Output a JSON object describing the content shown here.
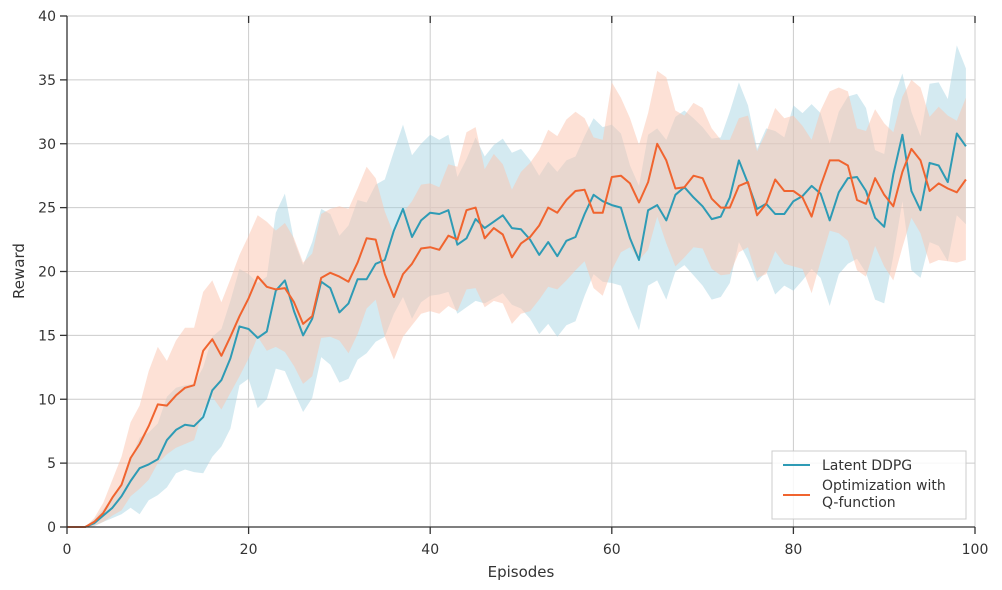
{
  "chart_data": {
    "type": "line",
    "xlabel": "Episodes",
    "ylabel": "Reward",
    "xlim": [
      0,
      100
    ],
    "ylim": [
      0,
      40
    ],
    "xticks": [
      0,
      20,
      40,
      60,
      80,
      100
    ],
    "yticks": [
      0,
      5,
      10,
      15,
      20,
      25,
      30,
      35,
      40
    ],
    "grid": true,
    "legend_position": "lower-right",
    "x": [
      0,
      1,
      2,
      3,
      4,
      5,
      6,
      7,
      8,
      9,
      10,
      11,
      12,
      13,
      14,
      15,
      16,
      17,
      18,
      19,
      20,
      21,
      22,
      23,
      24,
      25,
      26,
      27,
      28,
      29,
      30,
      31,
      32,
      33,
      34,
      35,
      36,
      37,
      38,
      39,
      40,
      41,
      42,
      43,
      44,
      45,
      46,
      47,
      48,
      49,
      50,
      51,
      52,
      53,
      54,
      55,
      56,
      57,
      58,
      59,
      60,
      61,
      62,
      63,
      64,
      65,
      66,
      67,
      68,
      69,
      70,
      71,
      72,
      73,
      74,
      75,
      76,
      77,
      78,
      79,
      80,
      81,
      82,
      83,
      84,
      85,
      86,
      87,
      88,
      89,
      90,
      91,
      92,
      93,
      94,
      95,
      96,
      97,
      98,
      99
    ],
    "series": [
      {
        "name": "Latent DDPG",
        "color": "#2e9bb5",
        "band_color": "#9fd1df",
        "values": [
          0,
          0,
          0,
          0.3,
          0.9,
          1.5,
          2.4,
          3.6,
          4.6,
          4.9,
          5.3,
          6.8,
          7.6,
          8.0,
          7.9,
          8.6,
          10.7,
          11.5,
          13.2,
          15.7,
          15.5,
          14.8,
          15.3,
          18.5,
          19.3,
          16.9,
          15.0,
          16.3,
          19.2,
          18.7,
          16.8,
          17.5,
          19.4,
          19.4,
          20.6,
          20.9,
          23.2,
          24.9,
          22.7,
          24.0,
          24.6,
          24.5,
          24.8,
          22.1,
          22.6,
          24.1,
          23.4,
          23.9,
          24.4,
          23.4,
          23.3,
          22.5,
          21.3,
          22.3,
          21.2,
          22.4,
          22.7,
          24.5,
          26.0,
          25.5,
          25.2,
          25.0,
          22.6,
          20.9,
          24.8,
          25.2,
          24.0,
          26.0,
          26.6,
          25.8,
          25.1,
          24.1,
          24.3,
          25.8,
          28.7,
          26.9,
          24.9,
          25.3,
          24.5,
          24.5,
          25.5,
          25.9,
          26.7,
          26.1,
          24.0,
          26.2,
          27.3,
          27.4,
          26.3,
          24.2,
          23.5,
          27.6,
          30.7,
          26.3,
          24.8,
          28.5,
          28.3,
          27.0,
          30.8,
          29.8
        ],
        "upper": [
          0,
          0,
          0,
          0.6,
          1.4,
          2.3,
          3.5,
          5.3,
          7.0,
          7.4,
          8.1,
          10.2,
          10.9,
          11.1,
          11.2,
          12.5,
          14.9,
          15.5,
          17.7,
          20.2,
          19.8,
          19.1,
          19.6,
          24.6,
          26.1,
          22.4,
          20.5,
          22.3,
          24.9,
          24.5,
          22.8,
          23.6,
          25.6,
          25.4,
          26.8,
          27.2,
          29.4,
          31.5,
          29.1,
          30.0,
          30.7,
          30.3,
          30.7,
          27.4,
          28.8,
          30.5,
          29.0,
          29.9,
          30.4,
          29.3,
          29.6,
          28.7,
          27.5,
          28.6,
          27.8,
          28.7,
          29.0,
          30.6,
          32.0,
          31.3,
          31.5,
          30.8,
          28.3,
          26.7,
          30.7,
          31.2,
          30.3,
          32.1,
          32.6,
          32.0,
          31.3,
          30.4,
          30.5,
          32.5,
          34.8,
          33.0,
          29.6,
          31.2,
          31.0,
          30.5,
          33.0,
          32.4,
          33.1,
          32.4,
          30.0,
          32.5,
          33.7,
          33.9,
          32.8,
          29.5,
          29.2,
          33.5,
          35.5,
          32.5,
          30.6,
          34.7,
          34.8,
          33.5,
          37.7,
          35.9
        ],
        "lower": [
          0,
          0,
          0,
          0.05,
          0.4,
          0.7,
          1.0,
          1.5,
          1.0,
          2.1,
          2.5,
          3.1,
          4.2,
          4.5,
          4.3,
          4.2,
          5.5,
          6.3,
          7.7,
          11.1,
          11.6,
          9.3,
          10.0,
          12.4,
          12.2,
          10.6,
          9.0,
          10.1,
          13.3,
          12.7,
          11.3,
          11.6,
          13.1,
          13.6,
          14.5,
          14.9,
          16.7,
          18.0,
          16.3,
          17.6,
          18.1,
          18.2,
          18.4,
          16.7,
          17.2,
          17.7,
          17.5,
          17.9,
          18.3,
          17.4,
          17.1,
          16.3,
          15.1,
          15.9,
          14.9,
          15.8,
          16.1,
          18.1,
          19.8,
          19.2,
          19.1,
          18.9,
          17.0,
          15.4,
          18.9,
          19.3,
          17.8,
          20.0,
          20.5,
          19.7,
          18.9,
          17.8,
          18.0,
          19.1,
          22.3,
          20.9,
          19.2,
          20.0,
          18.2,
          18.9,
          18.5,
          19.3,
          20.2,
          19.5,
          17.3,
          19.8,
          20.6,
          21.0,
          19.9,
          17.8,
          17.5,
          21.2,
          25.5,
          20.1,
          19.5,
          22.3,
          22.0,
          20.8,
          24.4,
          23.7
        ]
      },
      {
        "name": "Optimization with Q-function",
        "color": "#f0642f",
        "band_color": "#fcc3ae",
        "values": [
          0,
          0,
          0,
          0.4,
          1.1,
          2.3,
          3.3,
          5.4,
          6.5,
          7.9,
          9.6,
          9.5,
          10.3,
          10.9,
          11.1,
          13.8,
          14.7,
          13.4,
          14.9,
          16.5,
          17.9,
          19.6,
          18.8,
          18.6,
          18.7,
          17.6,
          15.9,
          16.5,
          19.5,
          19.9,
          19.6,
          19.2,
          20.7,
          22.6,
          22.5,
          19.8,
          18.0,
          19.8,
          20.6,
          21.8,
          21.9,
          21.7,
          22.8,
          22.5,
          24.8,
          25.0,
          22.6,
          23.4,
          22.9,
          21.1,
          22.2,
          22.7,
          23.6,
          25.0,
          24.6,
          25.6,
          26.3,
          26.4,
          24.6,
          24.6,
          27.4,
          27.5,
          26.9,
          25.4,
          27.0,
          30.0,
          28.7,
          26.5,
          26.6,
          27.5,
          27.3,
          25.7,
          25.0,
          25.0,
          26.7,
          27.0,
          24.4,
          25.3,
          27.2,
          26.3,
          26.3,
          25.8,
          24.3,
          26.7,
          28.7,
          28.7,
          28.3,
          25.6,
          25.3,
          27.3,
          26.0,
          25.1,
          27.8,
          29.6,
          28.7,
          26.3,
          26.9,
          26.5,
          26.2,
          27.2
        ],
        "upper": [
          0,
          0,
          0,
          0.7,
          1.9,
          3.7,
          5.5,
          8.2,
          9.5,
          12.2,
          14.1,
          13.0,
          14.6,
          15.6,
          15.6,
          18.4,
          19.3,
          17.6,
          19.4,
          21.3,
          22.8,
          24.4,
          23.9,
          23.2,
          23.8,
          22.6,
          20.7,
          21.4,
          24.5,
          24.9,
          25.1,
          24.9,
          26.5,
          28.2,
          27.3,
          24.7,
          22.9,
          24.6,
          25.5,
          26.8,
          26.9,
          26.6,
          28.4,
          28.2,
          30.9,
          31.3,
          28.0,
          29.2,
          28.4,
          26.4,
          27.8,
          28.5,
          29.5,
          31.1,
          30.6,
          31.9,
          32.5,
          32.0,
          30.5,
          30.3,
          34.8,
          33.6,
          32.0,
          29.9,
          32.4,
          35.7,
          35.2,
          32.6,
          32.2,
          33.2,
          32.8,
          31.2,
          30.3,
          30.3,
          32.0,
          32.2,
          29.4,
          30.9,
          32.8,
          32.0,
          32.2,
          31.4,
          30.3,
          32.6,
          34.1,
          34.4,
          34.1,
          31.2,
          31.0,
          32.7,
          31.6,
          30.9,
          33.7,
          35.0,
          34.4,
          32.1,
          32.9,
          32.2,
          31.8,
          33.6
        ],
        "lower": [
          0,
          0,
          0,
          0.1,
          0.4,
          0.9,
          1.3,
          2.4,
          3.0,
          3.7,
          5.0,
          5.7,
          6.2,
          6.5,
          6.8,
          9.2,
          10.2,
          9.2,
          10.5,
          11.8,
          13.2,
          14.9,
          13.8,
          14.1,
          13.7,
          12.6,
          11.2,
          11.8,
          14.8,
          14.9,
          14.6,
          13.6,
          15.1,
          17.1,
          17.8,
          14.9,
          13.1,
          14.9,
          15.8,
          16.7,
          16.9,
          16.7,
          17.3,
          16.9,
          18.6,
          18.7,
          17.2,
          17.7,
          17.5,
          15.9,
          16.7,
          16.9,
          17.8,
          18.8,
          18.6,
          19.3,
          20.1,
          20.8,
          18.7,
          18.1,
          20.1,
          21.5,
          21.9,
          20.9,
          21.7,
          24.3,
          22.2,
          20.4,
          21.1,
          21.9,
          21.8,
          20.2,
          19.7,
          19.8,
          21.5,
          21.9,
          19.5,
          19.8,
          21.6,
          20.6,
          20.4,
          20.2,
          18.3,
          20.8,
          23.2,
          23.0,
          22.4,
          20.1,
          19.6,
          22.0,
          20.4,
          19.3,
          21.9,
          24.2,
          23.0,
          20.6,
          20.9,
          20.8,
          20.7,
          20.9
        ]
      }
    ]
  }
}
